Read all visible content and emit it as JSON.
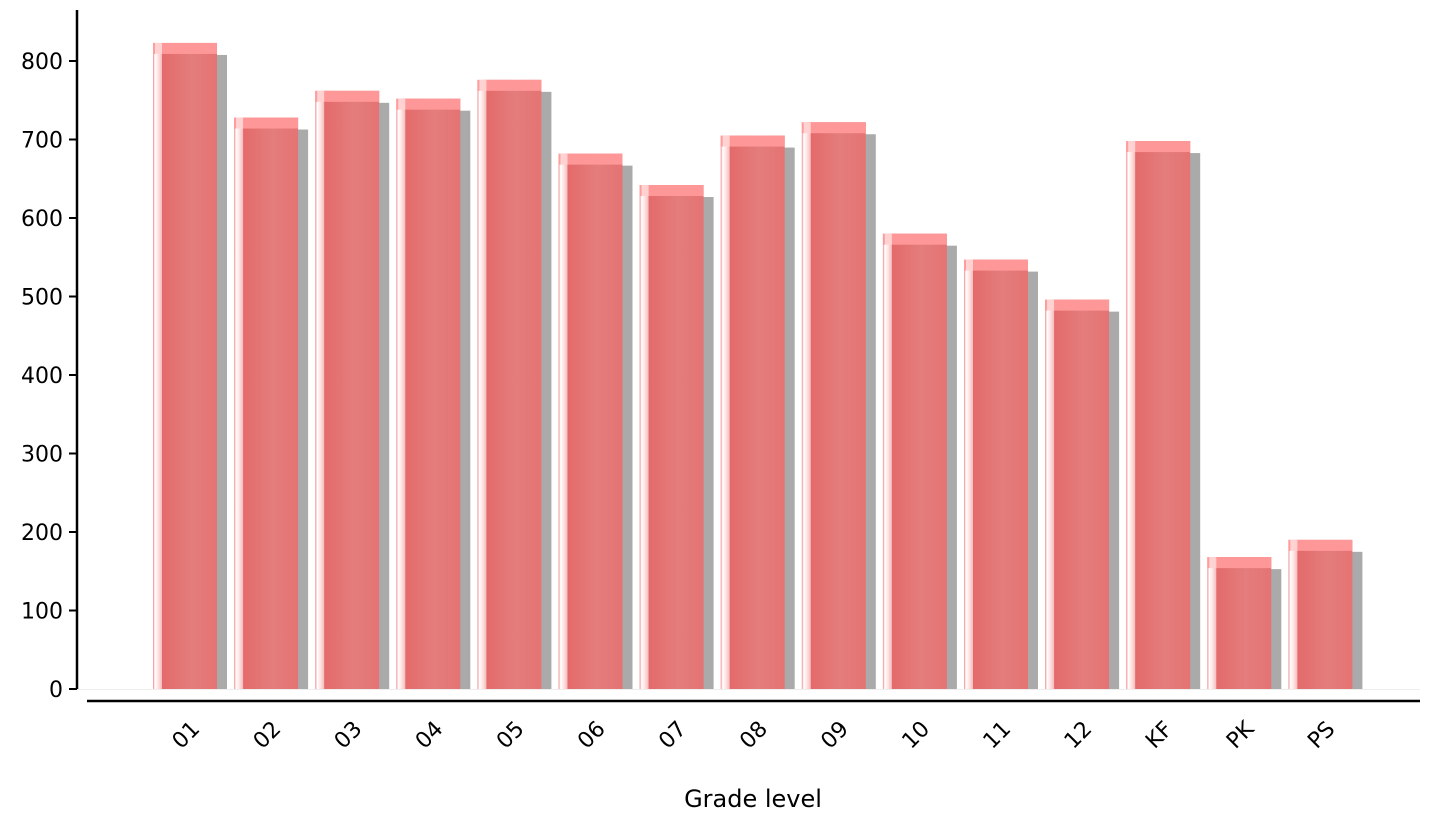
{
  "chart_data": {
    "type": "bar",
    "title": "",
    "xlabel": "Grade level",
    "ylabel": "",
    "categories": [
      "01",
      "02",
      "03",
      "04",
      "05",
      "06",
      "07",
      "08",
      "09",
      "10",
      "11",
      "12",
      "KF",
      "PK",
      "PS"
    ],
    "values": [
      823,
      728,
      762,
      752,
      776,
      682,
      642,
      705,
      722,
      580,
      547,
      496,
      698,
      168,
      190
    ],
    "ylim": [
      0,
      860
    ],
    "yticks": [
      0,
      100,
      200,
      300,
      400,
      500,
      600,
      700,
      800
    ],
    "grid": false,
    "legend": "none",
    "colors": {
      "bar": "#e57373",
      "bar_highlight": "#ffffff",
      "bar_top": "#ff9a9a",
      "shadow": "#aaaaaa",
      "axis": "#000000"
    }
  }
}
